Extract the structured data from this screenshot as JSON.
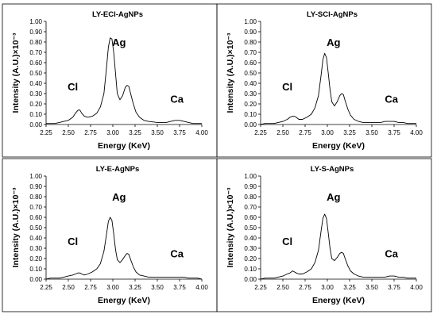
{
  "chart_data": [
    {
      "type": "line",
      "title": "LY-ECl-AgNPs",
      "xlabel": "Energy (KeV)",
      "ylabel": "Intensity (A.U.)×10⁻³",
      "xlim": [
        2.25,
        4.0
      ],
      "ylim": [
        0.0,
        1.0
      ],
      "xticks": [
        "2.25",
        "2.50",
        "2.75",
        "3.00",
        "3.25",
        "3.50",
        "3.75",
        "4.00"
      ],
      "yticks": [
        "0.00",
        "0.10",
        "0.20",
        "0.30",
        "0.40",
        "0.50",
        "0.60",
        "0.70",
        "0.80",
        "0.90",
        "1.00"
      ],
      "grid": false,
      "annotations": [
        {
          "text": "Cl",
          "x": 2.55,
          "y": 0.33
        },
        {
          "text": "Ag",
          "x": 3.07,
          "y": 0.76
        },
        {
          "text": "Ca",
          "x": 3.72,
          "y": 0.21
        }
      ],
      "x": [
        2.25,
        2.3,
        2.35,
        2.4,
        2.45,
        2.5,
        2.55,
        2.58,
        2.61,
        2.63,
        2.65,
        2.68,
        2.72,
        2.77,
        2.82,
        2.86,
        2.9,
        2.93,
        2.95,
        2.97,
        2.99,
        3.01,
        3.03,
        3.05,
        3.08,
        3.11,
        3.14,
        3.16,
        3.18,
        3.2,
        3.23,
        3.26,
        3.3,
        3.35,
        3.4,
        3.5,
        3.6,
        3.65,
        3.7,
        3.75,
        3.8,
        3.85,
        3.9,
        3.95,
        4.0
      ],
      "y": [
        0.01,
        0.01,
        0.01,
        0.02,
        0.03,
        0.04,
        0.07,
        0.11,
        0.14,
        0.14,
        0.11,
        0.08,
        0.07,
        0.08,
        0.11,
        0.17,
        0.3,
        0.56,
        0.75,
        0.84,
        0.83,
        0.7,
        0.5,
        0.3,
        0.24,
        0.28,
        0.36,
        0.38,
        0.37,
        0.3,
        0.2,
        0.12,
        0.07,
        0.04,
        0.03,
        0.02,
        0.02,
        0.03,
        0.04,
        0.04,
        0.03,
        0.02,
        0.01,
        0.01,
        0.01
      ]
    },
    {
      "type": "line",
      "title": "LY-SCl-AgNPs",
      "xlabel": "Energy (KeV)",
      "ylabel": "Intensity (A.U.)×10⁻³",
      "xlim": [
        2.25,
        4.0
      ],
      "ylim": [
        0.0,
        1.0
      ],
      "xticks": [
        "2.25",
        "2.50",
        "2.75",
        "3.00",
        "3.25",
        "3.50",
        "3.75",
        "4.00"
      ],
      "yticks": [
        "0.00",
        "0.10",
        "0.20",
        "0.30",
        "0.40",
        "0.50",
        "0.60",
        "0.70",
        "0.80",
        "0.90",
        "1.00"
      ],
      "grid": false,
      "annotations": [
        {
          "text": "Cl",
          "x": 2.55,
          "y": 0.33
        },
        {
          "text": "Ag",
          "x": 3.07,
          "y": 0.76
        },
        {
          "text": "Ca",
          "x": 3.72,
          "y": 0.21
        }
      ],
      "x": [
        2.25,
        2.3,
        2.35,
        2.4,
        2.45,
        2.5,
        2.55,
        2.58,
        2.61,
        2.63,
        2.65,
        2.68,
        2.72,
        2.77,
        2.82,
        2.86,
        2.9,
        2.93,
        2.95,
        2.97,
        2.99,
        3.01,
        3.03,
        3.05,
        3.08,
        3.11,
        3.14,
        3.16,
        3.18,
        3.2,
        3.23,
        3.26,
        3.3,
        3.35,
        3.4,
        3.5,
        3.6,
        3.65,
        3.7,
        3.75,
        3.8,
        3.85,
        3.9,
        3.95,
        4.0
      ],
      "y": [
        0.0,
        0.01,
        0.01,
        0.01,
        0.02,
        0.03,
        0.05,
        0.07,
        0.08,
        0.08,
        0.07,
        0.05,
        0.05,
        0.07,
        0.1,
        0.16,
        0.28,
        0.48,
        0.63,
        0.69,
        0.65,
        0.5,
        0.34,
        0.22,
        0.18,
        0.22,
        0.28,
        0.3,
        0.29,
        0.23,
        0.15,
        0.09,
        0.05,
        0.03,
        0.02,
        0.02,
        0.02,
        0.03,
        0.03,
        0.03,
        0.02,
        0.02,
        0.01,
        0.01,
        0.01
      ]
    },
    {
      "type": "line",
      "title": "LY-E-AgNPs",
      "xlabel": "Energy (KeV)",
      "ylabel": "Intensity (A.U.)×10⁻³",
      "xlim": [
        2.25,
        4.0
      ],
      "ylim": [
        0.0,
        1.0
      ],
      "xticks": [
        "2.25",
        "2.50",
        "2.75",
        "3.00",
        "3.25",
        "3.50",
        "3.75",
        "4.00"
      ],
      "yticks": [
        "0.00",
        "0.10",
        "0.20",
        "0.30",
        "0.40",
        "0.50",
        "0.60",
        "0.70",
        "0.80",
        "0.90",
        "1.00"
      ],
      "grid": false,
      "annotations": [
        {
          "text": "Cl",
          "x": 2.55,
          "y": 0.33
        },
        {
          "text": "Ag",
          "x": 3.07,
          "y": 0.76
        },
        {
          "text": "Ca",
          "x": 3.72,
          "y": 0.21
        }
      ],
      "x": [
        2.25,
        2.3,
        2.35,
        2.4,
        2.45,
        2.5,
        2.55,
        2.58,
        2.61,
        2.63,
        2.65,
        2.68,
        2.72,
        2.77,
        2.82,
        2.86,
        2.9,
        2.93,
        2.95,
        2.97,
        2.99,
        3.01,
        3.03,
        3.05,
        3.08,
        3.11,
        3.14,
        3.16,
        3.18,
        3.2,
        3.23,
        3.26,
        3.3,
        3.35,
        3.4,
        3.5,
        3.6,
        3.65,
        3.7,
        3.75,
        3.8,
        3.85,
        3.9,
        3.95,
        4.0
      ],
      "y": [
        0.0,
        0.01,
        0.01,
        0.01,
        0.02,
        0.03,
        0.04,
        0.05,
        0.06,
        0.06,
        0.05,
        0.04,
        0.05,
        0.07,
        0.1,
        0.15,
        0.27,
        0.44,
        0.56,
        0.6,
        0.57,
        0.44,
        0.29,
        0.19,
        0.16,
        0.19,
        0.23,
        0.25,
        0.24,
        0.19,
        0.12,
        0.07,
        0.04,
        0.03,
        0.02,
        0.02,
        0.02,
        0.02,
        0.02,
        0.02,
        0.02,
        0.01,
        0.01,
        0.01,
        0.0
      ]
    },
    {
      "type": "line",
      "title": "LY-S-AgNPs",
      "xlabel": "Energy (KeV)",
      "ylabel": "Intensity (A.U.)×10⁻³",
      "xlim": [
        2.25,
        4.0
      ],
      "ylim": [
        0.0,
        1.0
      ],
      "xticks": [
        "2.25",
        "2.50",
        "2.75",
        "3.00",
        "3.25",
        "3.50",
        "3.75",
        "4.00"
      ],
      "yticks": [
        "0.00",
        "0.10",
        "0.20",
        "0.30",
        "0.40",
        "0.50",
        "0.60",
        "0.70",
        "0.80",
        "0.90",
        "1.00"
      ],
      "grid": false,
      "annotations": [
        {
          "text": "Cl",
          "x": 2.55,
          "y": 0.33
        },
        {
          "text": "Ag",
          "x": 3.07,
          "y": 0.76
        },
        {
          "text": "Ca",
          "x": 3.72,
          "y": 0.21
        }
      ],
      "x": [
        2.25,
        2.3,
        2.35,
        2.4,
        2.45,
        2.5,
        2.55,
        2.58,
        2.61,
        2.63,
        2.65,
        2.68,
        2.72,
        2.77,
        2.82,
        2.86,
        2.9,
        2.93,
        2.95,
        2.97,
        2.99,
        3.01,
        3.03,
        3.05,
        3.08,
        3.11,
        3.14,
        3.16,
        3.18,
        3.2,
        3.23,
        3.26,
        3.3,
        3.35,
        3.4,
        3.5,
        3.6,
        3.65,
        3.7,
        3.75,
        3.8,
        3.85,
        3.9,
        3.95,
        4.0
      ],
      "y": [
        0.0,
        0.01,
        0.01,
        0.01,
        0.02,
        0.03,
        0.05,
        0.06,
        0.08,
        0.07,
        0.06,
        0.05,
        0.05,
        0.07,
        0.1,
        0.16,
        0.28,
        0.47,
        0.59,
        0.63,
        0.59,
        0.45,
        0.3,
        0.2,
        0.18,
        0.21,
        0.25,
        0.26,
        0.25,
        0.2,
        0.13,
        0.08,
        0.05,
        0.03,
        0.02,
        0.02,
        0.02,
        0.02,
        0.03,
        0.03,
        0.02,
        0.02,
        0.01,
        0.01,
        0.01
      ]
    }
  ]
}
